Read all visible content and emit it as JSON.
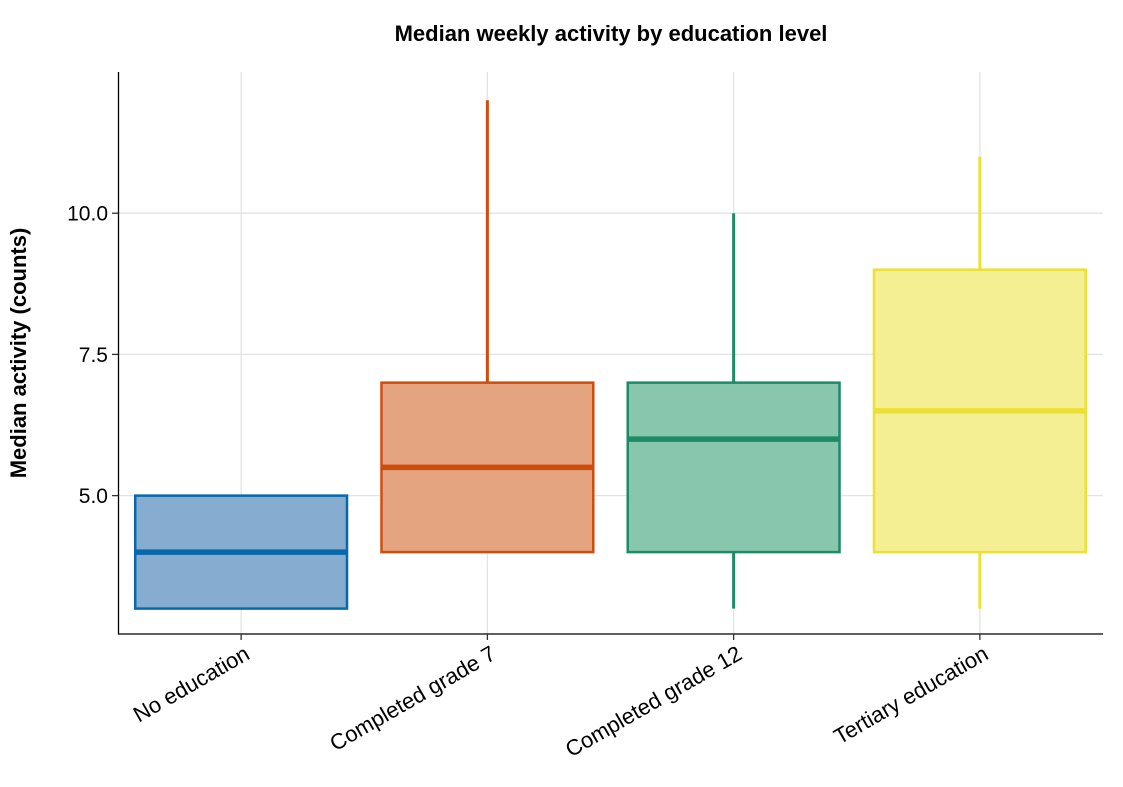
{
  "chart_data": {
    "type": "box",
    "title": "Median weekly activity by education level",
    "xlabel": "",
    "ylabel": "Median activity (counts)",
    "ylim": [
      2.55,
      12.5
    ],
    "yticks": [
      5.0,
      7.5,
      10.0
    ],
    "ytick_labels": [
      "5.0",
      "7.5",
      "10.0"
    ],
    "grid": true,
    "categories": [
      "No education",
      "Completed grade 7",
      "Completed grade 12",
      "Tertiary education"
    ],
    "boxes": [
      {
        "category": "No education",
        "min": 3.0,
        "q1": 3.0,
        "median": 4.0,
        "q3": 5.0,
        "max": 5.0,
        "color": "#0868ac",
        "fill": "#86adcf"
      },
      {
        "category": "Completed grade 7",
        "min": 4.0,
        "q1": 4.0,
        "median": 5.5,
        "q3": 7.0,
        "max": 12.0,
        "color": "#d04c0d",
        "fill": "#e4a47f"
      },
      {
        "category": "Completed grade 12",
        "min": 3.0,
        "q1": 4.0,
        "median": 6.0,
        "q3": 7.0,
        "max": 10.0,
        "color": "#1b8c65",
        "fill": "#88c7ae"
      },
      {
        "category": "Tertiary education",
        "min": 3.0,
        "q1": 4.0,
        "median": 6.5,
        "q3": 9.0,
        "max": 11.0,
        "color": "#ecdf35",
        "fill": "#f5ef94"
      }
    ]
  }
}
